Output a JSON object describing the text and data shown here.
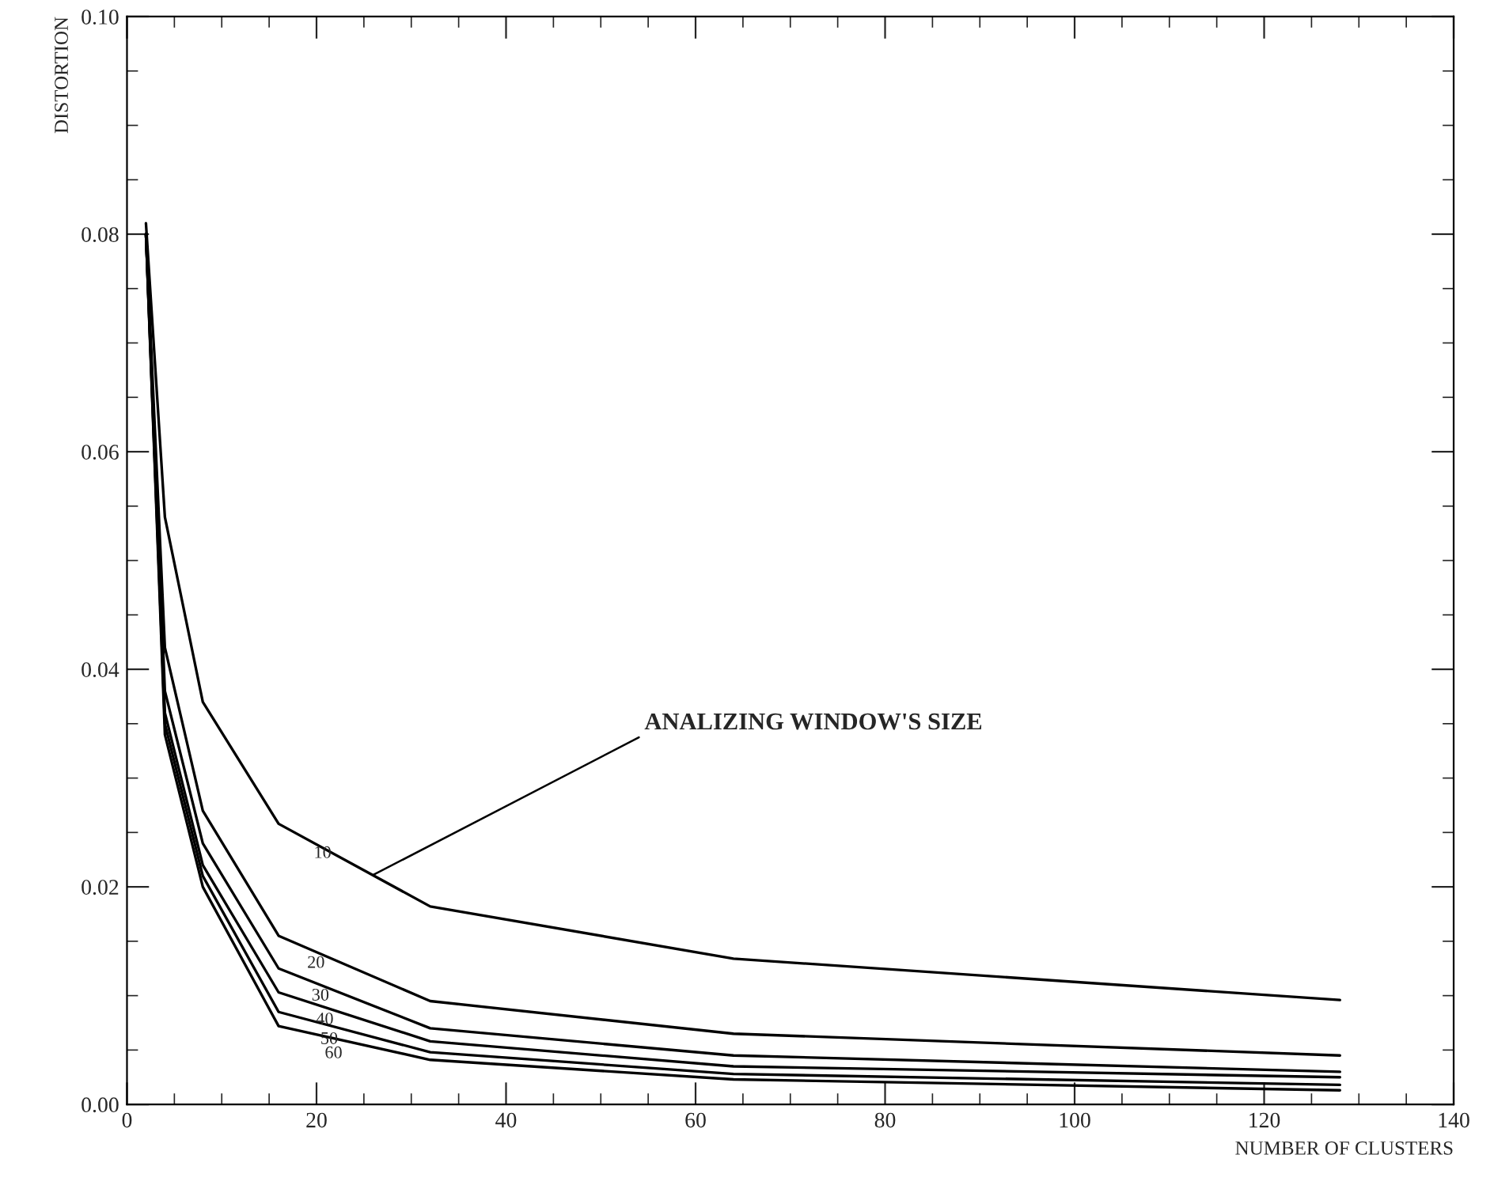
{
  "chart_data": {
    "type": "line",
    "xlabel": "NUMBER OF CLUSTERS",
    "ylabel": "DISTORTION",
    "x": [
      2,
      4,
      8,
      16,
      32,
      64,
      128
    ],
    "series": [
      {
        "name": "10",
        "color": "#000000",
        "values": [
          0.081,
          0.054,
          0.037,
          0.0258,
          0.0182,
          0.0134,
          0.0096
        ]
      },
      {
        "name": "20",
        "color": "#000000",
        "values": [
          0.08,
          0.042,
          0.027,
          0.0155,
          0.0095,
          0.0065,
          0.0045
        ]
      },
      {
        "name": "30",
        "color": "#000000",
        "values": [
          0.08,
          0.038,
          0.024,
          0.0125,
          0.007,
          0.0045,
          0.003
        ]
      },
      {
        "name": "40",
        "color": "#000000",
        "values": [
          0.08,
          0.036,
          0.022,
          0.0103,
          0.0058,
          0.0035,
          0.0025
        ]
      },
      {
        "name": "50",
        "color": "#000000",
        "values": [
          0.08,
          0.035,
          0.021,
          0.0085,
          0.0048,
          0.0028,
          0.0018
        ]
      },
      {
        "name": "60",
        "color": "#000000",
        "values": [
          0.08,
          0.034,
          0.02,
          0.0072,
          0.0041,
          0.0023,
          0.0013
        ]
      }
    ],
    "annotations": [
      {
        "text": "ANALIZING WINDOW'S SIZE",
        "x": 26,
        "y": 0.0211
      }
    ],
    "xlim": [
      0,
      140
    ],
    "xticks": [
      0,
      20,
      40,
      60,
      80,
      100,
      120,
      140
    ],
    "ylim": [
      0,
      0.1
    ],
    "yticks": [
      {
        "value": 0,
        "label": "0.00"
      },
      {
        "value": 0.02,
        "label": "0.02"
      },
      {
        "value": 0.04,
        "label": "0.04"
      },
      {
        "value": 0.06,
        "label": "0.06"
      },
      {
        "value": 0.08,
        "label": "0.08"
      },
      {
        "value": 0.1,
        "label": "0.10"
      }
    ],
    "grid": false,
    "legend": false,
    "marker": "none",
    "line_style": "solid"
  }
}
